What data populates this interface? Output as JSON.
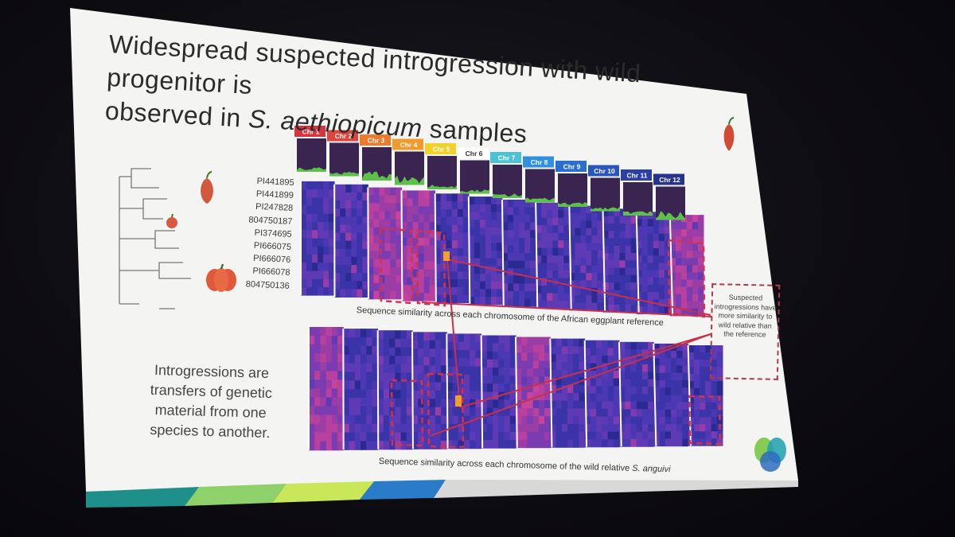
{
  "slide": {
    "title_line1": "Widespread suspected introgression with wild progenitor is",
    "title_line2_pre": "observed in ",
    "title_line2_italic": "S. aethiopicum",
    "title_line2_post": " samples",
    "samples": [
      "PI441895",
      "PI441899",
      "PI247828",
      "804750187",
      "PI374695",
      "PI666075",
      "PI666076",
      "PI666078",
      "804750136"
    ],
    "intro_text": "Introgressions are transfers of genetic material from one species to another.",
    "caption_top": "Sequence similarity across each chromosome of the African eggplant reference",
    "caption_bottom_pre": "Sequence similarity across each chromosome of the wild relative ",
    "caption_bottom_italic": "S. anguivi",
    "note": "Suspected introgressions have more similarity to wild relative than the reference"
  },
  "chromosomes": [
    {
      "label": "Chr 1",
      "color": "#d8343f"
    },
    {
      "label": "Chr 2",
      "color": "#e0443c"
    },
    {
      "label": "Chr 3",
      "color": "#ef7a2a"
    },
    {
      "label": "Chr 4",
      "color": "#f29a2a"
    },
    {
      "label": "Chr 5",
      "color": "#f2d22a"
    },
    {
      "label": "Chr 6",
      "color": "#ffffff"
    },
    {
      "label": "Chr 7",
      "color": "#4bc2d6"
    },
    {
      "label": "Chr 8",
      "color": "#2f8fe0"
    },
    {
      "label": "Chr 9",
      "color": "#2a6fd0"
    },
    {
      "label": "Chr 10",
      "color": "#2856c0"
    },
    {
      "label": "Chr 11",
      "color": "#2a3fa8"
    },
    {
      "label": "Chr 12",
      "color": "#28338f"
    }
  ],
  "colors": {
    "slide_bg": "#f4f4f2",
    "heat_dark": "#2a2a8a",
    "heat_mid": "#6a3fb0",
    "heat_hot": "#c8409a",
    "highlight": "#d3314a",
    "pepper": "#d85a3a"
  }
}
